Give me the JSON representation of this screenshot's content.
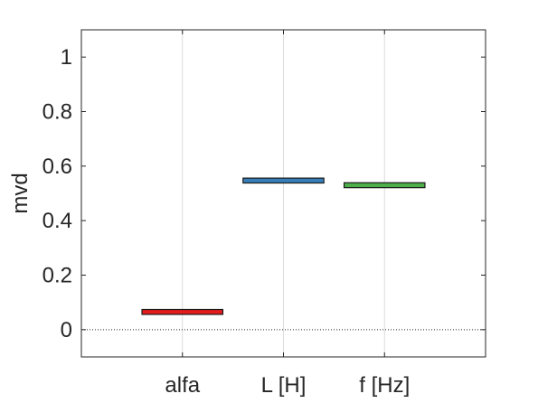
{
  "chart_data": {
    "type": "bar",
    "categories": [
      "alfa",
      "L [H]",
      "f [Hz]"
    ],
    "values": [
      0.065,
      0.547,
      0.53
    ],
    "band_half_height": 0.009,
    "colors": [
      "#e41a1c",
      "#377eb8",
      "#4daf4a"
    ],
    "title": "",
    "xlabel": "",
    "ylabel": "mvd",
    "ylim": [
      -0.1,
      1.1
    ],
    "yticks": [
      0,
      0.2,
      0.4,
      0.6,
      0.8,
      1
    ],
    "ytick_labels": [
      "0",
      "0.2",
      "0.4",
      "0.6",
      "0.8",
      "1"
    ],
    "xlim": [
      0,
      4
    ],
    "x_positions": [
      1,
      2,
      3
    ],
    "grid": "vertical",
    "reference_line": 0,
    "legend": "none"
  }
}
